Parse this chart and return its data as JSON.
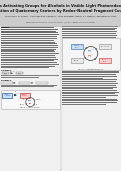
{
  "background_color": "#f0f0f0",
  "title": "Oxalates as Activating Groups for Alcohols in Visible Light Photoredox Catalysis:\nFormation of Quaternary Centers by Redox-Neutral Fragment Coupling",
  "title_color": "#111111",
  "title_fontsize": 2.6,
  "title_bg": "#d8d8d8",
  "authors": "Christopher D. Sunkel,  Christopher M. Levinson,  Cody Goldberg,  Daniel S. J. Radtke,  and Barry M. Trost",
  "authors_fontsize": 1.5,
  "affil": "Department of Chemistry, Stanford University | Present Address: Universitat Munster",
  "affil_fontsize": 1.2,
  "body_color": "#111111",
  "body_fontsize": 1.3,
  "label_fontsize": 1.5,
  "section_fontsize": 1.6,
  "col_divider": 61,
  "text_gray": "#444444",
  "line_gray": "#888888",
  "box_blue_bg": "#cce0f5",
  "box_blue_border": "#2266aa",
  "box_red_bg": "#fad0d0",
  "box_red_border": "#cc3333",
  "box_gray_bg": "#e8e8e8",
  "box_gray_border": "#888888",
  "circle_color": "#555555",
  "arrow_color": "#555555",
  "pink_color": "#dd3388",
  "blue_color": "#2255bb",
  "red_color": "#cc2222"
}
